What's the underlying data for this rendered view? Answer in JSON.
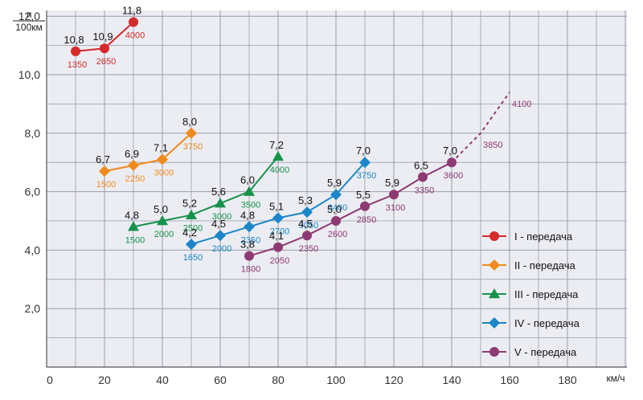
{
  "chart_data": {
    "type": "line",
    "ylabel_top": "л",
    "ylabel_bottom": "100км",
    "xlabel": "км/ч",
    "xlim": [
      0,
      200
    ],
    "ylim": [
      0,
      13
    ],
    "x_ticks": [
      "0",
      "20",
      "40",
      "60",
      "80",
      "100",
      "120",
      "140",
      "160",
      "180"
    ],
    "y_ticks": [
      "2,0",
      "4,0",
      "6,0",
      "8,0",
      "10,0",
      "12,0"
    ],
    "grid": true,
    "legend_position": "right",
    "series": [
      {
        "name": "I - передача",
        "color": "#d42a2a",
        "marker": "circle",
        "points": [
          {
            "x": 10,
            "y": 10.8,
            "value_label": "10,8",
            "rpm": "1350"
          },
          {
            "x": 20,
            "y": 10.9,
            "value_label": "10,9",
            "rpm": "2650"
          },
          {
            "x": 30,
            "y": 11.8,
            "value_label": "11,8",
            "rpm": "4000"
          }
        ]
      },
      {
        "name": "II - передача",
        "color": "#f08a1c",
        "marker": "diamond",
        "points": [
          {
            "x": 20,
            "y": 6.7,
            "value_label": "6,7",
            "rpm": "1500"
          },
          {
            "x": 30,
            "y": 6.9,
            "value_label": "6,9",
            "rpm": "2250"
          },
          {
            "x": 40,
            "y": 7.1,
            "value_label": "7,1",
            "rpm": "3000"
          },
          {
            "x": 50,
            "y": 8.0,
            "value_label": "8,0",
            "rpm": "3750"
          }
        ]
      },
      {
        "name": "III - передача",
        "color": "#16924a",
        "marker": "triangle",
        "points": [
          {
            "x": 30,
            "y": 4.8,
            "value_label": "4,8",
            "rpm": "1500"
          },
          {
            "x": 40,
            "y": 5.0,
            "value_label": "5,0",
            "rpm": "2000"
          },
          {
            "x": 50,
            "y": 5.2,
            "value_label": "5,2",
            "rpm": "2500"
          },
          {
            "x": 60,
            "y": 5.6,
            "value_label": "5,6",
            "rpm": "3000"
          },
          {
            "x": 70,
            "y": 6.0,
            "value_label": "6,0",
            "rpm": "3500"
          },
          {
            "x": 80,
            "y": 7.2,
            "value_label": "7,2",
            "rpm": "4000"
          }
        ]
      },
      {
        "name": "IV - передача",
        "color": "#1b86c8",
        "marker": "diamond",
        "points": [
          {
            "x": 50,
            "y": 4.2,
            "value_label": "4,2",
            "rpm": "1650"
          },
          {
            "x": 60,
            "y": 4.5,
            "value_label": "4,5",
            "rpm": "2000"
          },
          {
            "x": 70,
            "y": 4.8,
            "value_label": "4,8",
            "rpm": "2350"
          },
          {
            "x": 80,
            "y": 5.1,
            "value_label": "5,1",
            "rpm": "2700"
          },
          {
            "x": 90,
            "y": 5.3,
            "value_label": "5,3",
            "rpm": "3050"
          },
          {
            "x": 100,
            "y": 5.9,
            "value_label": "5,9",
            "rpm": "3400"
          },
          {
            "x": 110,
            "y": 7.0,
            "value_label": "7,0",
            "rpm": "3750"
          }
        ]
      },
      {
        "name": "V - передача",
        "color": "#8e3a72",
        "marker": "circle",
        "points": [
          {
            "x": 70,
            "y": 3.8,
            "value_label": "3,8",
            "rpm": "1800"
          },
          {
            "x": 80,
            "y": 4.1,
            "value_label": "4,1",
            "rpm": "2050"
          },
          {
            "x": 90,
            "y": 4.5,
            "value_label": "4,5",
            "rpm": "2350"
          },
          {
            "x": 100,
            "y": 5.0,
            "value_label": "5,0",
            "rpm": "2600"
          },
          {
            "x": 110,
            "y": 5.5,
            "value_label": "5,5",
            "rpm": "2850"
          },
          {
            "x": 120,
            "y": 5.9,
            "value_label": "5,9",
            "rpm": "3100"
          },
          {
            "x": 130,
            "y": 6.5,
            "value_label": "6,5",
            "rpm": "3350"
          },
          {
            "x": 140,
            "y": 7.0,
            "value_label": "7,0",
            "rpm": "3600"
          }
        ],
        "extrapolated": [
          {
            "x": 140,
            "y": 7.0
          },
          {
            "x": 150,
            "y": 8.0,
            "rpm": "3850"
          },
          {
            "x": 160,
            "y": 9.4,
            "rpm": "4100"
          }
        ]
      }
    ]
  }
}
